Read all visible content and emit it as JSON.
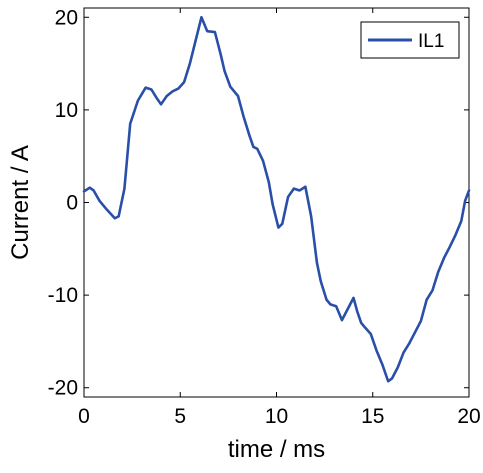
{
  "chart_data": {
    "type": "line",
    "title": "",
    "xlabel": "time / ms",
    "ylabel": "Current / A",
    "xlim": [
      0,
      20
    ],
    "ylim": [
      -21,
      21
    ],
    "xticks": [
      0,
      5,
      10,
      15,
      20
    ],
    "yticks": [
      20,
      10,
      0,
      -10,
      -20
    ],
    "xtick_labels": [
      "0",
      "5",
      "10",
      "15",
      "20"
    ],
    "ytick_labels": [
      "20",
      "10",
      "0",
      "-10",
      "-20"
    ],
    "grid": false,
    "legend": {
      "position": "top-right"
    },
    "series": [
      {
        "name": "IL1",
        "color": "#2a4fa8",
        "x": [
          0,
          0.3,
          0.5,
          0.8,
          1.2,
          1.6,
          1.8,
          2.1,
          2.4,
          2.8,
          3.2,
          3.5,
          3.8,
          4.0,
          4.3,
          4.6,
          4.9,
          5.2,
          5.5,
          5.8,
          6.1,
          6.4,
          6.8,
          7.1,
          7.3,
          7.6,
          8.0,
          8.3,
          8.6,
          8.8,
          9.0,
          9.3,
          9.6,
          9.8,
          10.1,
          10.3,
          10.6,
          10.9,
          11.2,
          11.5,
          11.8,
          12.1,
          12.3,
          12.6,
          12.8,
          13.1,
          13.4,
          13.7,
          14.0,
          14.2,
          14.4,
          14.6,
          14.9,
          15.2,
          15.5,
          15.8,
          16.0,
          16.3,
          16.6,
          16.9,
          17.2,
          17.5,
          17.8,
          18.1,
          18.4,
          18.7,
          19.0,
          19.3,
          19.6,
          19.8,
          20.0
        ],
        "y": [
          1.2,
          1.6,
          1.3,
          0.2,
          -0.8,
          -1.7,
          -1.5,
          1.5,
          8.5,
          11.0,
          12.4,
          12.2,
          11.2,
          10.6,
          11.5,
          12.0,
          12.3,
          13.0,
          15.0,
          17.5,
          20.0,
          18.5,
          18.4,
          16.0,
          14.2,
          12.5,
          11.5,
          9.2,
          7.2,
          6.0,
          5.8,
          4.5,
          2.2,
          -0.2,
          -2.7,
          -2.3,
          0.6,
          1.5,
          1.3,
          1.7,
          -1.5,
          -6.5,
          -8.5,
          -10.5,
          -11.0,
          -11.2,
          -12.7,
          -11.5,
          -10.3,
          -11.8,
          -13.0,
          -13.5,
          -14.2,
          -16.0,
          -17.5,
          -19.3,
          -19.0,
          -17.8,
          -16.2,
          -15.2,
          -14.0,
          -12.8,
          -10.5,
          -9.5,
          -7.5,
          -6.0,
          -4.8,
          -3.5,
          -2.0,
          0.2,
          1.3
        ]
      }
    ]
  }
}
